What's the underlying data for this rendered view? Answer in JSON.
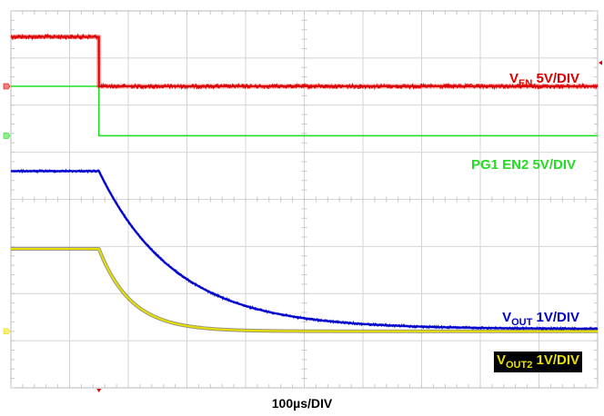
{
  "chart_data": {
    "type": "line",
    "title": "",
    "xlabel": "100µs/DIV",
    "ylabel": "",
    "grid": true,
    "divisions": {
      "x": 10,
      "y": 8
    },
    "trigger_time_div": 1.5,
    "series": [
      {
        "name": "V_EN 5V/DIV",
        "label_main": "V",
        "label_sub": "EN",
        "label_tail": " 5V/DIV",
        "color": "#dd0000",
        "noise": true,
        "x_div": [
          0,
          1.5,
          1.5,
          10
        ],
        "y_div": [
          7.45,
          7.45,
          6.4,
          6.4
        ]
      },
      {
        "name": "PG1 EN2 5V/DIV",
        "label_main": "PG1 EN2 5V/DIV",
        "label_sub": "",
        "label_tail": "",
        "color": "#22dd22",
        "noise": false,
        "x_div": [
          0,
          1.5,
          1.5,
          10
        ],
        "y_div": [
          6.4,
          6.4,
          5.35,
          5.35
        ]
      },
      {
        "name": "V_OUT 1V/DIV",
        "label_main": "V",
        "label_sub": "OUT",
        "label_tail": " 1V/DIV",
        "color": "#0000cc",
        "noise": true,
        "decay": {
          "start_div": 1.5,
          "high_div": 4.6,
          "low_div": 1.25,
          "tau_div": 1.3
        }
      },
      {
        "name": "V_OUT2 1V/DIV",
        "label_main": "V",
        "label_sub": "OUT2",
        "label_tail": " 1V/DIV",
        "color": "#e8e000",
        "noise": false,
        "decay": {
          "start_div": 1.5,
          "high_div": 2.95,
          "low_div": 1.2,
          "tau_div": 0.55
        }
      }
    ]
  }
}
